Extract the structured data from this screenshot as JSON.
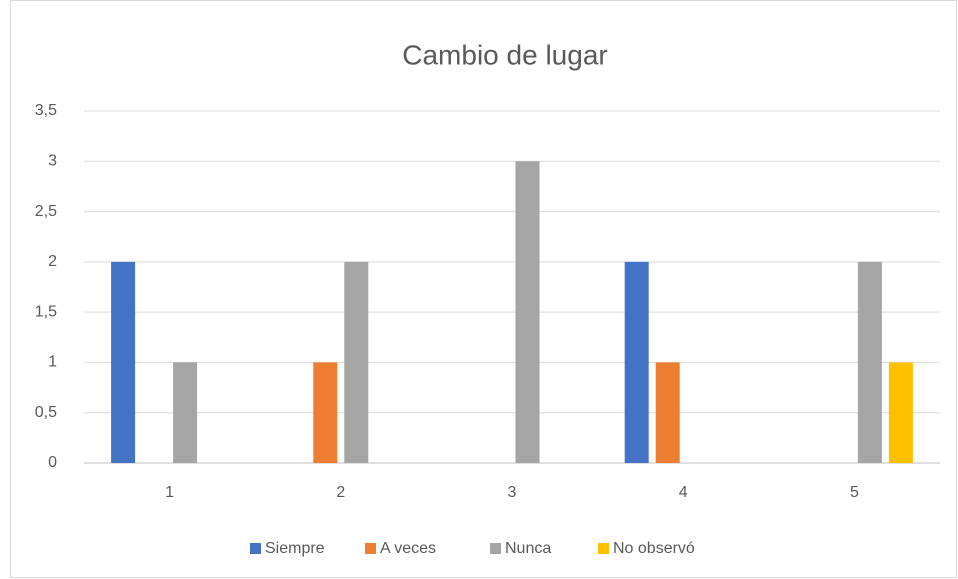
{
  "chart_data": {
    "type": "bar",
    "title": "Cambio de lugar",
    "categories": [
      "1",
      "2",
      "3",
      "4",
      "5"
    ],
    "series": [
      {
        "name": "Siempre",
        "color": "#4472c4",
        "values": [
          2,
          0,
          0,
          2,
          0
        ]
      },
      {
        "name": "A veces",
        "color": "#ed7d31",
        "values": [
          0,
          1,
          0,
          1,
          0
        ]
      },
      {
        "name": "Nunca",
        "color": "#a5a5a5",
        "values": [
          1,
          2,
          3,
          0,
          2
        ]
      },
      {
        "name": "No observó",
        "color": "#ffc000",
        "values": [
          0,
          0,
          0,
          0,
          1
        ]
      }
    ],
    "ylim": [
      0,
      3.5
    ],
    "yticks": [
      0,
      {
        "value": 0.5,
        "label": "0,5"
      },
      1,
      {
        "value": 1.5,
        "label": "1,5"
      },
      2,
      {
        "value": 2.5,
        "label": "2,5"
      },
      3,
      {
        "value": 3.5,
        "label": "3,5"
      }
    ],
    "grid": true,
    "legend": "bottom"
  }
}
